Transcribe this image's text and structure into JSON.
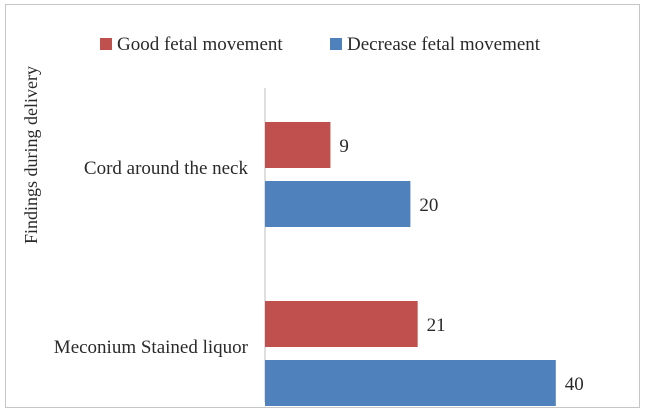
{
  "chart_data": {
    "type": "bar",
    "orientation": "horizontal",
    "categories": [
      "Cord around the neck",
      "Meconium Stained liquor"
    ],
    "series": [
      {
        "name": "Good fetal movement",
        "values": [
          9,
          21
        ],
        "color": "#c0504d"
      },
      {
        "name": "Decrease fetal movement",
        "values": [
          20,
          40
        ],
        "color": "#4f81bd"
      }
    ],
    "title": "",
    "xlabel": "",
    "ylabel": "Findings during delivery",
    "xlim": [
      0,
      45
    ],
    "grid": false,
    "legend_position": "top",
    "data_labels": true
  }
}
